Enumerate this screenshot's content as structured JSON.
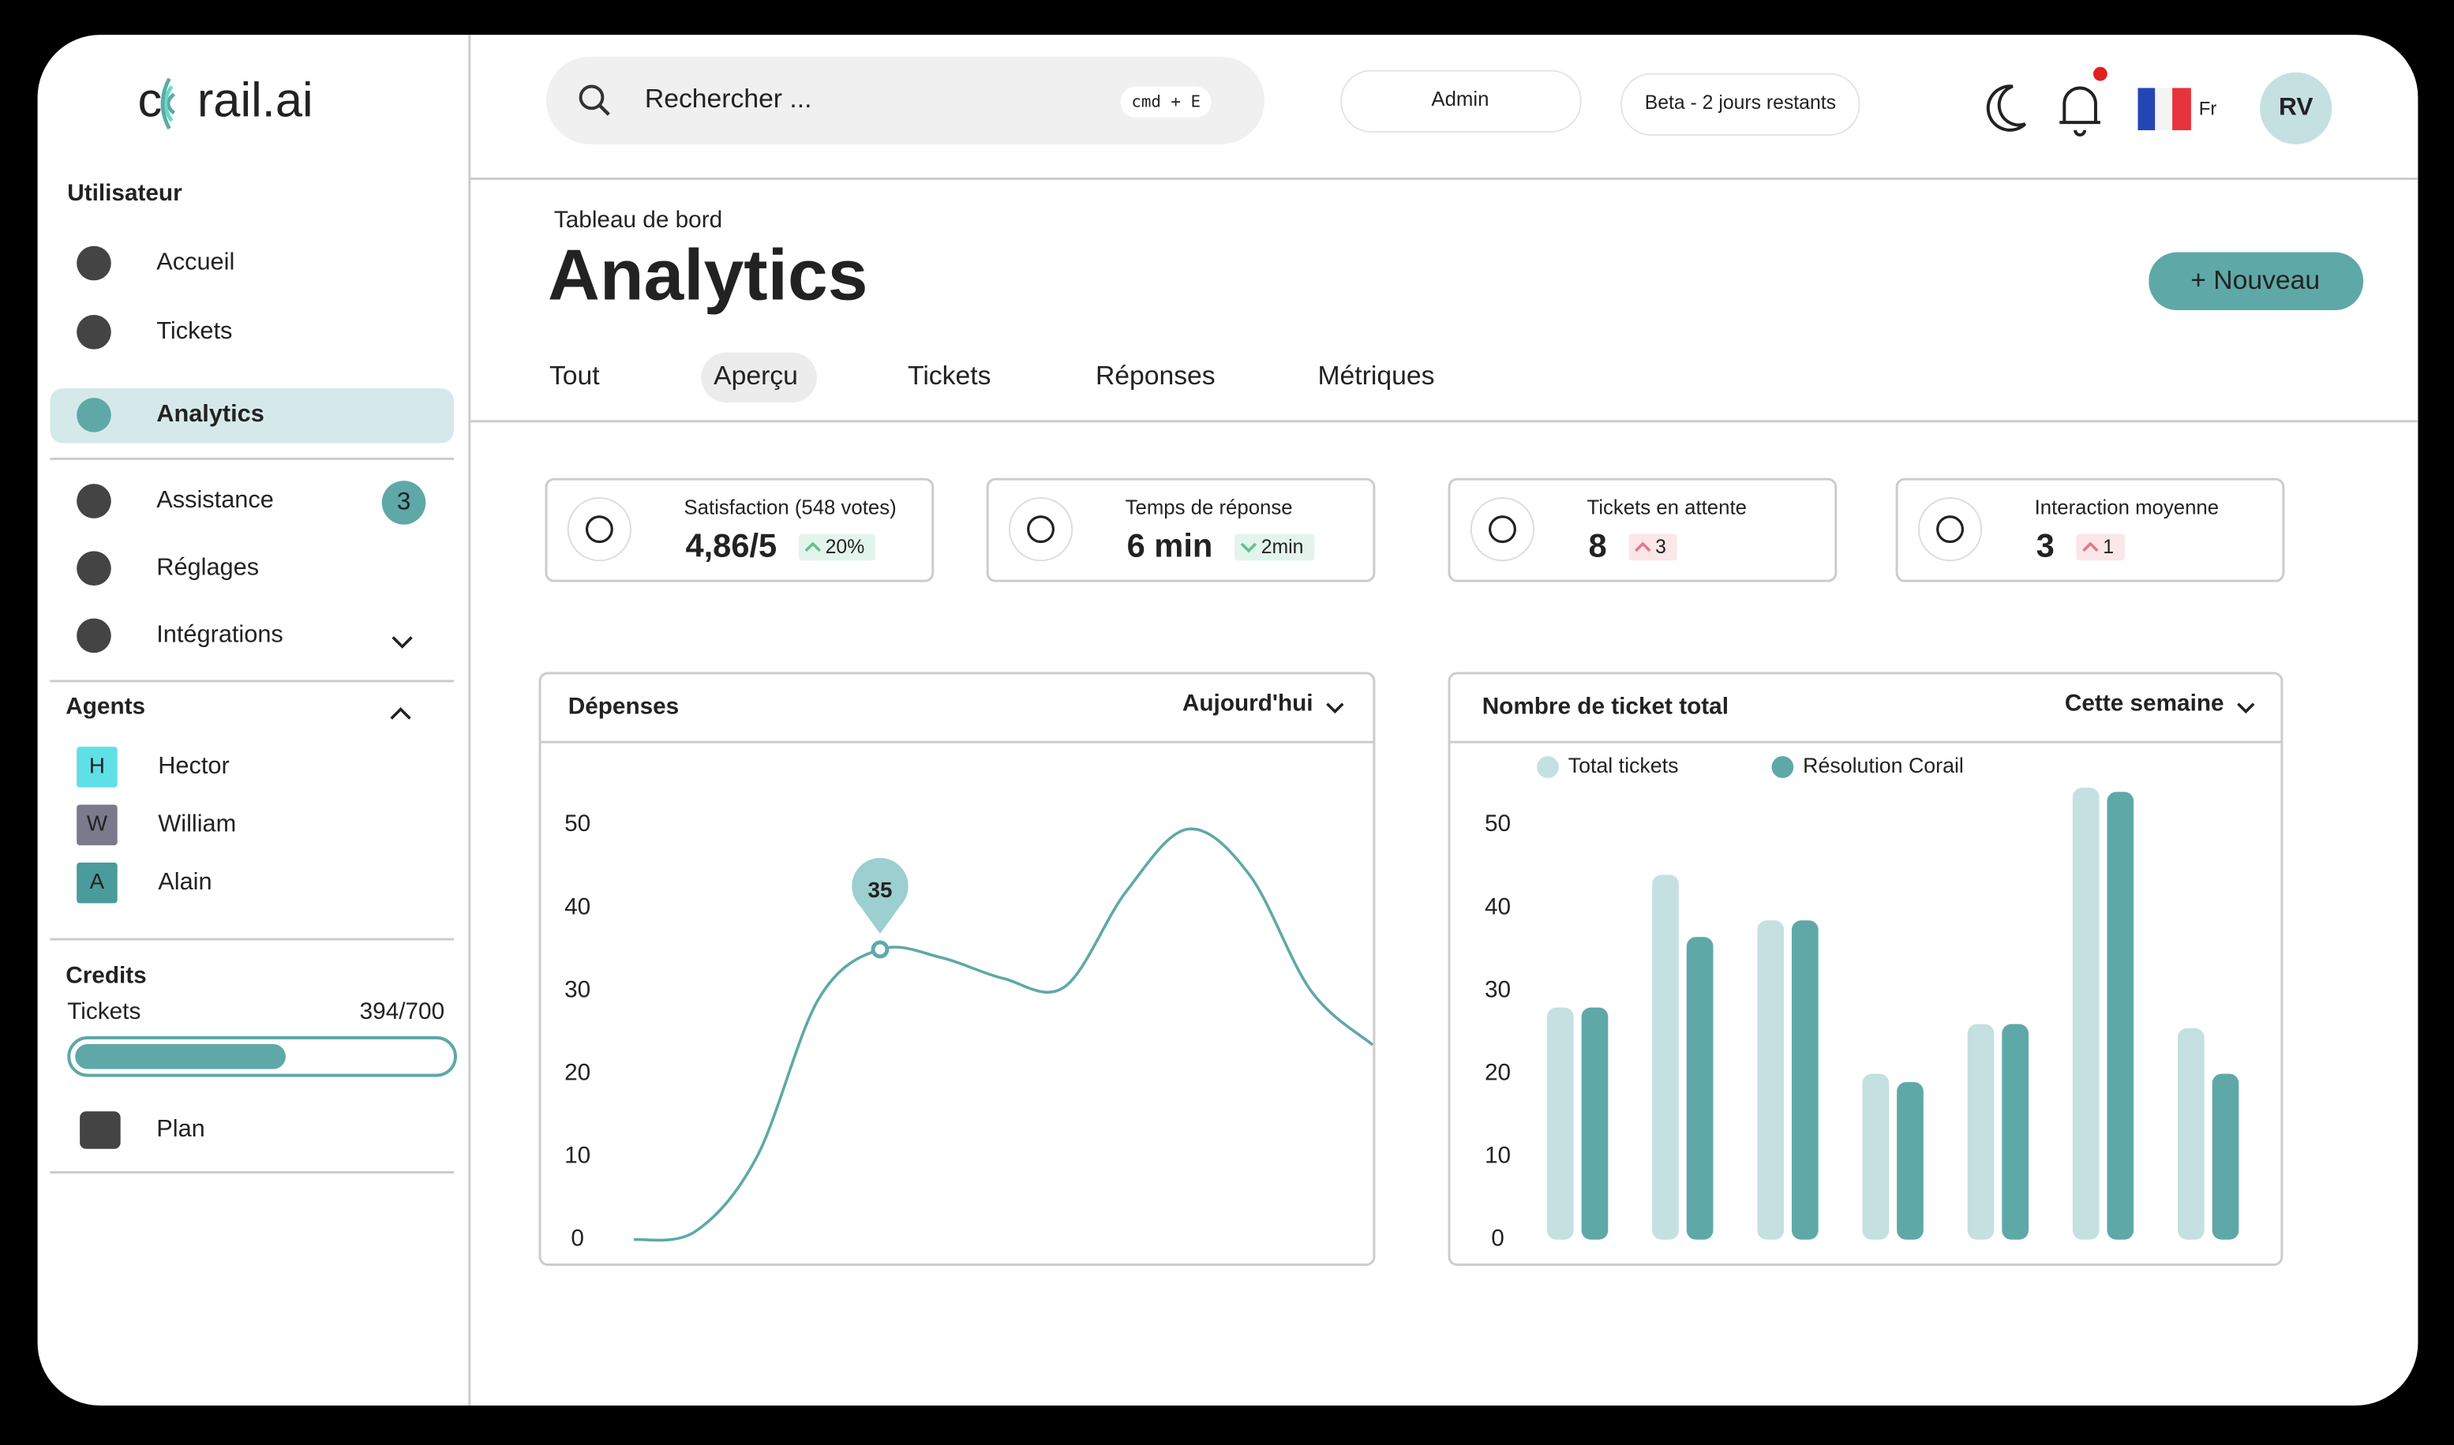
{
  "logo": {
    "start": "c",
    "end": "rail.ai"
  },
  "sidebar": {
    "user_section": "Utilisateur",
    "items": [
      {
        "label": "Accueil"
      },
      {
        "label": "Tickets"
      },
      {
        "label": "Analytics"
      },
      {
        "label": "Assistance",
        "badge": 3
      },
      {
        "label": "Réglages"
      },
      {
        "label": "Intégrations"
      }
    ],
    "active": 2,
    "agents_section": "Agents",
    "agents": [
      {
        "initial": "H",
        "name": "Hector",
        "color": "#5fe0e6"
      },
      {
        "initial": "W",
        "name": "William",
        "color": "#7a7a8c"
      },
      {
        "initial": "A",
        "name": "Alain",
        "color": "#4a9b9b"
      }
    ],
    "credits": {
      "title": "Credits",
      "label": "Tickets",
      "used": 394,
      "total": 700,
      "value_label": "394/700"
    },
    "plan": "Plan"
  },
  "topbar": {
    "search": "Rechercher ...",
    "shortcut": "cmd + E",
    "role": "Admin",
    "trial": "Beta - 2 jours restants",
    "language": "Fr",
    "avatar": "RV"
  },
  "header": {
    "breadcrumb": "Tableau de bord",
    "title": "Analytics",
    "button": "+ Nouveau",
    "tabs": [
      "Tout",
      "Aperçu",
      "Tickets",
      "Réponses",
      "Métriques"
    ],
    "active_tab": 1
  },
  "kpis": [
    {
      "label": "Satisfaction (548 votes)",
      "value": "4,86/5",
      "delta": "20%",
      "trend": "up",
      "tone": "good"
    },
    {
      "label": "Temps de réponse",
      "value": "6 min",
      "delta": "2min",
      "trend": "down",
      "tone": "good"
    },
    {
      "label": "Tickets en attente",
      "value": "8",
      "delta": "3",
      "trend": "up",
      "tone": "bad"
    },
    {
      "label": "Interaction moyenne",
      "value": "3",
      "delta": "1",
      "trend": "up",
      "tone": "bad"
    }
  ],
  "chart_data": [
    {
      "type": "line",
      "title": "Dépenses",
      "period": "Aujourd'hui",
      "categories": [
        null,
        null,
        null,
        null,
        null,
        null,
        null,
        null,
        null,
        null,
        null,
        null,
        null
      ],
      "values": [
        0,
        1,
        10,
        29,
        35,
        34,
        31.5,
        30.5,
        42,
        49.5,
        44,
        30,
        23.5
      ],
      "highlight": 4,
      "color": "#5fa8a8",
      "ylim": [
        0,
        50
      ],
      "yticks": [
        0,
        10,
        20,
        30,
        40,
        50
      ]
    },
    {
      "type": "bar",
      "title": "Nombre de ticket total",
      "period": "Cette semaine",
      "categories": [
        null,
        null,
        null,
        null,
        null,
        null,
        null
      ],
      "series": [
        {
          "name": "Total tickets",
          "color": "#c5e0e1",
          "values": [
            28,
            44,
            38.5,
            20,
            26,
            54.5,
            25.5
          ]
        },
        {
          "name": "Résolution Corail",
          "color": "#5fa8a8",
          "values": [
            28,
            36.5,
            38.5,
            19,
            26,
            54,
            20
          ]
        }
      ],
      "ylim": [
        0,
        50
      ],
      "yticks": [
        0,
        10,
        20,
        30,
        40,
        50
      ],
      "legend": "top"
    }
  ]
}
